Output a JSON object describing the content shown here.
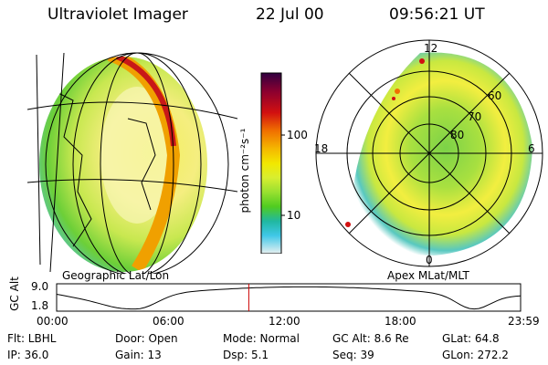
{
  "header": {
    "title": "Ultraviolet Imager",
    "date": "22 Jul 00",
    "time": "09:56:21 UT"
  },
  "left_panel": {
    "label": "Geographic Lat/Lon"
  },
  "colorbar": {
    "unit": "photon cm⁻²s⁻¹",
    "ticks": [
      "100",
      "10"
    ],
    "scale": "log",
    "colors": [
      "#300040",
      "#8a0030",
      "#d21010",
      "#f07000",
      "#f5b800",
      "#f2e800",
      "#d8ee30",
      "#98e030",
      "#50cc20",
      "#20b8a0",
      "#40c8e8",
      "#a8e0f0",
      "#e8f0f0"
    ]
  },
  "right_panel": {
    "label": "Apex MLat/MLT",
    "mlt_labels": {
      "top": "12",
      "left": "18",
      "right": "6",
      "bottom": "0"
    },
    "lat_labels": [
      "60",
      "70",
      "80"
    ]
  },
  "altitude_plot": {
    "ylabel": "GC Alt",
    "yticks": [
      "9.0",
      "1.8"
    ],
    "xticks": [
      "00:00",
      "06:00",
      "12:00",
      "18:00",
      "23:59"
    ],
    "marker_color": "#cc0000",
    "marker_time_hours": 9.94
  },
  "info": {
    "flt": "Flt: LBHL",
    "door": "Door: Open",
    "mode": "Mode: Normal",
    "gc_alt": "GC Alt: 8.6 Re",
    "glat": "GLat:  64.8",
    "ip": "IP: 36.0",
    "gain": "Gain: 13",
    "dsp": "Dsp:     5.1",
    "seq": "Seq: 39",
    "glon": "GLon: 272.2"
  }
}
